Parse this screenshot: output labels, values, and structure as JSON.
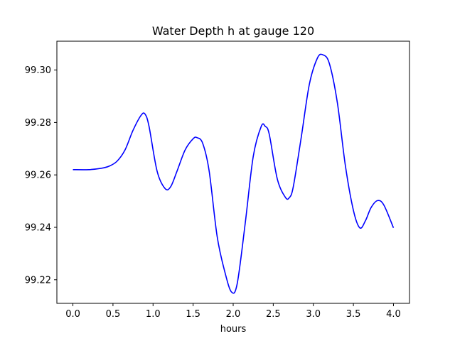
{
  "chart_data": {
    "type": "line",
    "title": "Water Depth h at gauge 120",
    "xlabel": "hours",
    "ylabel": "",
    "xlim": [
      -0.2,
      4.2
    ],
    "ylim": [
      99.211,
      99.311
    ],
    "xticks": [
      0.0,
      0.5,
      1.0,
      1.5,
      2.0,
      2.5,
      3.0,
      3.5,
      4.0
    ],
    "xtick_labels": [
      "0.0",
      "0.5",
      "1.0",
      "1.5",
      "2.0",
      "2.5",
      "3.0",
      "3.5",
      "4.0"
    ],
    "yticks": [
      99.22,
      99.24,
      99.26,
      99.28,
      99.3
    ],
    "ytick_labels": [
      "99.22",
      "99.24",
      "99.26",
      "99.28",
      "99.30"
    ],
    "grid": false,
    "series": [
      {
        "color": "#0000ff",
        "x": [
          0.0,
          0.2,
          0.35,
          0.45,
          0.55,
          0.65,
          0.75,
          0.85,
          0.9,
          0.95,
          1.05,
          1.15,
          1.22,
          1.3,
          1.4,
          1.5,
          1.55,
          1.62,
          1.7,
          1.8,
          1.9,
          1.98,
          2.05,
          2.15,
          2.25,
          2.35,
          2.4,
          2.45,
          2.55,
          2.65,
          2.7,
          2.75,
          2.85,
          2.95,
          3.05,
          3.12,
          3.2,
          3.3,
          3.4,
          3.5,
          3.58,
          3.65,
          3.72,
          3.8,
          3.88,
          4.0
        ],
        "y": [
          99.262,
          99.262,
          99.2625,
          99.2633,
          99.2652,
          99.2695,
          99.277,
          99.2827,
          99.2832,
          99.2785,
          99.2615,
          99.2548,
          99.2555,
          99.2615,
          99.2695,
          99.2738,
          99.2742,
          99.272,
          99.2615,
          99.2365,
          99.2225,
          99.2153,
          99.2185,
          99.2415,
          99.267,
          99.2785,
          99.2785,
          99.2755,
          99.2585,
          99.2515,
          99.2513,
          99.2555,
          99.2745,
          99.2945,
          99.3045,
          99.3058,
          99.3025,
          99.2875,
          99.2635,
          99.2465,
          99.2398,
          99.2425,
          99.2475,
          99.2502,
          99.2485,
          99.2398
        ]
      }
    ]
  }
}
